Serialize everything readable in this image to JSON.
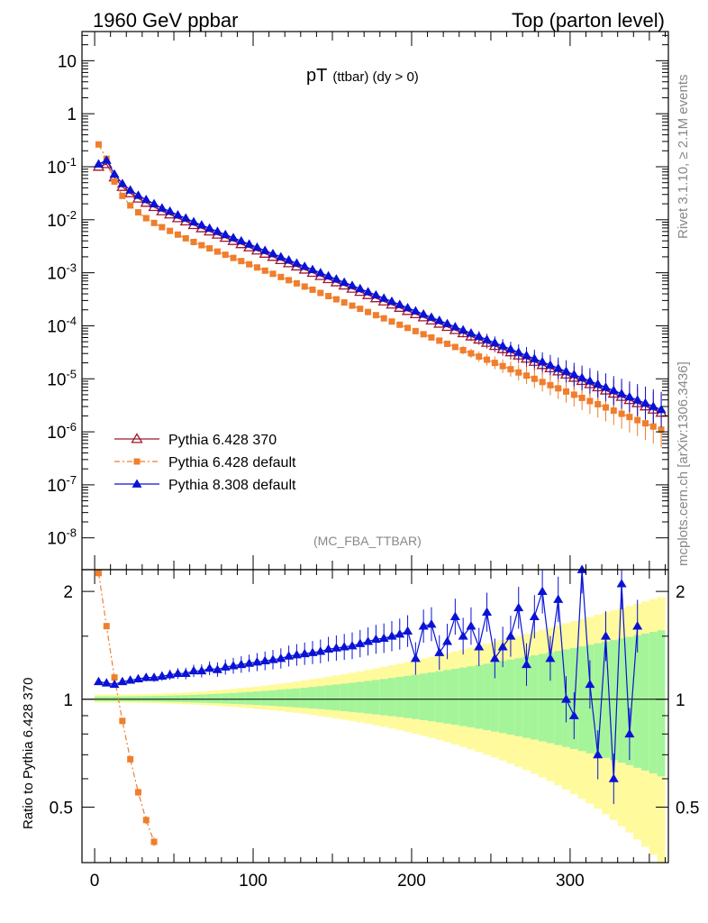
{
  "header": {
    "left_title": "1960 GeV ppbar",
    "right_title": "Top (parton level)"
  },
  "side_labels": {
    "rivet": "Rivet 3.1.10, ≥ 2.1M events",
    "mcplots": "mcplots.cern.ch [arXiv:1306.3436]"
  },
  "analysis_tag": "(MC_FBA_TTBAR)",
  "chart_data": [
    {
      "type": "scatter",
      "panel": "main",
      "title_main": "pT",
      "title_sub": "(ttbar) (dy > 0)",
      "yscale": "log",
      "xlim": [
        -8,
        362
      ],
      "ylim_log10": [
        -8.6,
        1.55
      ],
      "ytick_labels": [
        "10",
        "1",
        "10^-1",
        "10^-2",
        "10^-3",
        "10^-4",
        "10^-5",
        "10^-6",
        "10^-7",
        "10^-8"
      ],
      "ytick_values_log10": [
        1,
        0,
        -1,
        -2,
        -3,
        -4,
        -5,
        -6,
        -7,
        -8
      ],
      "legend_position": "lower-left",
      "series": [
        {
          "name": "Pythia 6.428 370",
          "color": "#a0162b",
          "marker": "open-triangle",
          "x": [
            2.5,
            7.5,
            12.5,
            17.5,
            22.5,
            27.5,
            32.5,
            37.5,
            42.5,
            47.5,
            52.5,
            57.5,
            62.5,
            67.5,
            72.5,
            77.5,
            82.5,
            87.5,
            92.5,
            97.5,
            102.5,
            107.5,
            112.5,
            117.5,
            122.5,
            127.5,
            132.5,
            137.5,
            142.5,
            147.5,
            152.5,
            157.5,
            162.5,
            167.5,
            172.5,
            177.5,
            182.5,
            187.5,
            192.5,
            197.5,
            202.5,
            207.5,
            212.5,
            217.5,
            222.5,
            227.5,
            232.5,
            237.5,
            242.5,
            247.5,
            252.5,
            257.5,
            262.5,
            267.5,
            272.5,
            277.5,
            282.5,
            287.5,
            292.5,
            297.5,
            302.5,
            307.5,
            312.5,
            317.5,
            322.5,
            327.5,
            332.5,
            337.5,
            342.5,
            347.5,
            352.5,
            357.5
          ],
          "logy": [
            -1.0,
            -0.95,
            -1.2,
            -1.38,
            -1.5,
            -1.6,
            -1.68,
            -1.76,
            -1.84,
            -1.9,
            -1.97,
            -2.03,
            -2.1,
            -2.16,
            -2.22,
            -2.28,
            -2.34,
            -2.4,
            -2.46,
            -2.52,
            -2.58,
            -2.64,
            -2.7,
            -2.76,
            -2.82,
            -2.88,
            -2.94,
            -3.0,
            -3.06,
            -3.12,
            -3.18,
            -3.24,
            -3.3,
            -3.36,
            -3.42,
            -3.48,
            -3.54,
            -3.6,
            -3.66,
            -3.72,
            -3.78,
            -3.84,
            -3.9,
            -3.96,
            -4.02,
            -4.08,
            -4.14,
            -4.2,
            -4.26,
            -4.32,
            -4.38,
            -4.44,
            -4.5,
            -4.56,
            -4.62,
            -4.68,
            -4.74,
            -4.8,
            -4.86,
            -4.92,
            -4.98,
            -5.04,
            -5.1,
            -5.16,
            -5.22,
            -5.28,
            -5.34,
            -5.4,
            -5.46,
            -5.52,
            -5.58,
            -5.64
          ]
        },
        {
          "name": "Pythia 6.428 default",
          "color": "#f07e2c",
          "marker": "square",
          "x": [
            2.5,
            7.5,
            12.5,
            17.5,
            22.5,
            27.5,
            32.5,
            37.5,
            42.5,
            47.5,
            52.5,
            57.5,
            62.5,
            67.5,
            72.5,
            77.5,
            82.5,
            87.5,
            92.5,
            97.5,
            102.5,
            107.5,
            112.5,
            117.5,
            122.5,
            127.5,
            132.5,
            137.5,
            142.5,
            147.5,
            152.5,
            157.5,
            162.5,
            167.5,
            172.5,
            177.5,
            182.5,
            187.5,
            192.5,
            197.5,
            202.5,
            207.5,
            212.5,
            217.5,
            222.5,
            227.5,
            232.5,
            237.5,
            242.5,
            247.5,
            252.5,
            257.5,
            262.5,
            267.5,
            272.5,
            277.5,
            282.5,
            287.5,
            292.5,
            297.5,
            302.5,
            307.5,
            312.5,
            317.5,
            322.5,
            327.5,
            332.5,
            337.5,
            342.5,
            347.5,
            352.5,
            357.5
          ],
          "logy": [
            -0.58,
            -0.85,
            -1.28,
            -1.55,
            -1.73,
            -1.86,
            -1.97,
            -2.06,
            -2.14,
            -2.21,
            -2.28,
            -2.35,
            -2.42,
            -2.48,
            -2.54,
            -2.6,
            -2.66,
            -2.72,
            -2.78,
            -2.84,
            -2.9,
            -2.96,
            -3.02,
            -3.08,
            -3.14,
            -3.2,
            -3.26,
            -3.32,
            -3.38,
            -3.44,
            -3.5,
            -3.56,
            -3.62,
            -3.68,
            -3.74,
            -3.8,
            -3.86,
            -3.92,
            -3.98,
            -4.04,
            -4.1,
            -4.16,
            -4.22,
            -4.28,
            -4.34,
            -4.4,
            -4.46,
            -4.52,
            -4.58,
            -4.64,
            -4.7,
            -4.76,
            -4.82,
            -4.88,
            -4.94,
            -5.0,
            -5.06,
            -5.12,
            -5.18,
            -5.24,
            -5.3,
            -5.36,
            -5.42,
            -5.48,
            -5.54,
            -5.6,
            -5.66,
            -5.72,
            -5.78,
            -5.84,
            -5.9,
            -5.96
          ]
        },
        {
          "name": "Pythia 8.308 default",
          "color": "#0a12d6",
          "marker": "triangle",
          "x": [
            2.5,
            7.5,
            12.5,
            17.5,
            22.5,
            27.5,
            32.5,
            37.5,
            42.5,
            47.5,
            52.5,
            57.5,
            62.5,
            67.5,
            72.5,
            77.5,
            82.5,
            87.5,
            92.5,
            97.5,
            102.5,
            107.5,
            112.5,
            117.5,
            122.5,
            127.5,
            132.5,
            137.5,
            142.5,
            147.5,
            152.5,
            157.5,
            162.5,
            167.5,
            172.5,
            177.5,
            182.5,
            187.5,
            192.5,
            197.5,
            202.5,
            207.5,
            212.5,
            217.5,
            222.5,
            227.5,
            232.5,
            237.5,
            242.5,
            247.5,
            252.5,
            257.5,
            262.5,
            267.5,
            272.5,
            277.5,
            282.5,
            287.5,
            292.5,
            297.5,
            302.5,
            307.5,
            312.5,
            317.5,
            322.5,
            327.5,
            332.5,
            337.5,
            342.5,
            347.5,
            352.5,
            357.5
          ],
          "logy": [
            -0.95,
            -0.88,
            -1.14,
            -1.32,
            -1.44,
            -1.54,
            -1.62,
            -1.7,
            -1.78,
            -1.84,
            -1.91,
            -1.97,
            -2.04,
            -2.1,
            -2.16,
            -2.22,
            -2.28,
            -2.34,
            -2.4,
            -2.46,
            -2.52,
            -2.58,
            -2.64,
            -2.7,
            -2.76,
            -2.82,
            -2.88,
            -2.94,
            -3.0,
            -3.06,
            -3.12,
            -3.18,
            -3.24,
            -3.3,
            -3.36,
            -3.42,
            -3.48,
            -3.54,
            -3.6,
            -3.66,
            -3.72,
            -3.78,
            -3.84,
            -3.9,
            -3.96,
            -4.02,
            -4.08,
            -4.14,
            -4.2,
            -4.26,
            -4.32,
            -4.38,
            -4.44,
            -4.5,
            -4.56,
            -4.62,
            -4.68,
            -4.74,
            -4.8,
            -4.86,
            -4.92,
            -4.98,
            -5.04,
            -5.1,
            -5.16,
            -5.22,
            -5.28,
            -5.34,
            -5.4,
            -5.46,
            -5.52,
            -5.58
          ]
        }
      ]
    },
    {
      "type": "scatter",
      "panel": "ratio",
      "ylabel": "Ratio to Pythia 6.428 370",
      "xlim": [
        -8,
        362
      ],
      "ylim": [
        0.35,
        2.3
      ],
      "xtick_labels": [
        "0",
        "100",
        "200",
        "300"
      ],
      "xtick_values": [
        0,
        100,
        200,
        300
      ],
      "ytick_labels": [
        "0.5",
        "1",
        "2"
      ],
      "ytick_values": [
        0.5,
        1,
        2
      ],
      "reference_line": 1,
      "series": [
        {
          "name": "Pythia 6.428 default",
          "color": "#f07e2c",
          "x": [
            2.5,
            7.5,
            12.5,
            17.5,
            22.5,
            27.5,
            32.5,
            37.5
          ],
          "y": [
            2.25,
            1.6,
            1.15,
            0.87,
            0.68,
            0.55,
            0.46,
            0.4
          ]
        },
        {
          "name": "Pythia 8.308 default",
          "color": "#0a12d6",
          "x": [
            2.5,
            7.5,
            12.5,
            17.5,
            22.5,
            27.5,
            32.5,
            37.5,
            42.5,
            47.5,
            52.5,
            57.5,
            62.5,
            67.5,
            72.5,
            77.5,
            82.5,
            87.5,
            92.5,
            97.5,
            102.5,
            107.5,
            112.5,
            117.5,
            122.5,
            127.5,
            132.5,
            137.5,
            142.5,
            147.5,
            152.5,
            157.5,
            162.5,
            167.5,
            172.5,
            177.5,
            182.5,
            187.5,
            192.5,
            197.5,
            202.5,
            207.5,
            212.5,
            217.5,
            222.5,
            227.5,
            232.5,
            237.5,
            242.5,
            247.5,
            252.5,
            257.5,
            262.5,
            267.5,
            272.5,
            277.5,
            282.5,
            287.5,
            292.5,
            297.5,
            302.5,
            307.5,
            312.5,
            317.5,
            322.5,
            327.5,
            332.5,
            337.5,
            342.5
          ],
          "y": [
            1.12,
            1.11,
            1.1,
            1.12,
            1.13,
            1.14,
            1.15,
            1.15,
            1.16,
            1.17,
            1.18,
            1.18,
            1.2,
            1.2,
            1.22,
            1.21,
            1.23,
            1.24,
            1.25,
            1.26,
            1.27,
            1.28,
            1.29,
            1.3,
            1.32,
            1.33,
            1.34,
            1.35,
            1.36,
            1.38,
            1.39,
            1.4,
            1.41,
            1.43,
            1.45,
            1.47,
            1.48,
            1.5,
            1.52,
            1.55,
            1.3,
            1.6,
            1.62,
            1.35,
            1.45,
            1.7,
            1.5,
            1.6,
            1.4,
            1.75,
            1.3,
            1.4,
            1.5,
            1.8,
            1.25,
            1.7,
            2.0,
            1.3,
            1.9,
            1.0,
            0.9,
            2.3,
            1.1,
            0.7,
            1.5,
            0.6,
            2.1,
            0.8,
            1.6
          ]
        }
      ],
      "bands": {
        "yellow_color": "#fffa9c",
        "green_color": "#a4f49a"
      }
    }
  ]
}
